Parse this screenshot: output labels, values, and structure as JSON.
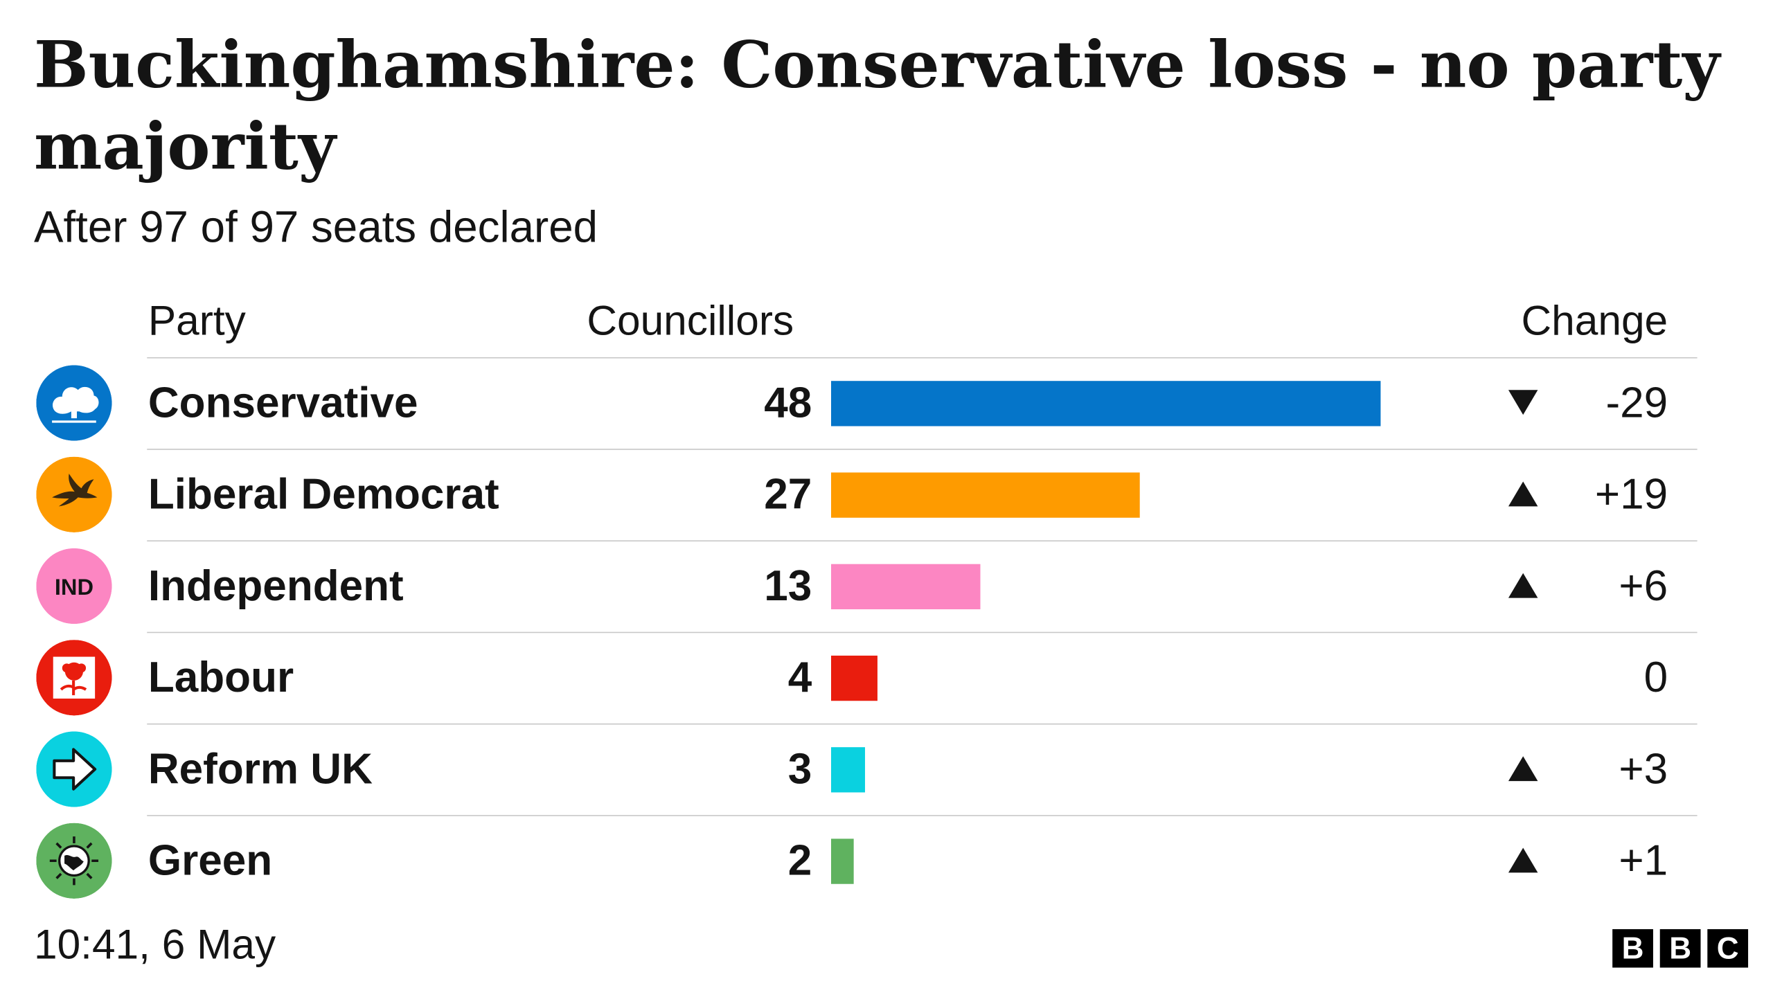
{
  "title": "Buckinghamshire: Conservative loss - no party majority",
  "subtitle": "After 97 of 97 seats declared",
  "headers": {
    "party": "Party",
    "councillors": "Councillors",
    "change": "Change"
  },
  "footer": {
    "timestamp": "10:41,  6 May",
    "brand": [
      "B",
      "B",
      "C"
    ]
  },
  "parties": [
    {
      "name": "Conservative",
      "seats": 48,
      "seats_label": "48",
      "change": "-29",
      "direction": "down",
      "color": "#0575C9",
      "icon": "conservative-tree-icon"
    },
    {
      "name": "Liberal Democrat",
      "seats": 27,
      "seats_label": "27",
      "change": "+19",
      "direction": "up",
      "color": "#FE9B00",
      "icon": "libdem-bird-icon"
    },
    {
      "name": "Independent",
      "seats": 13,
      "seats_label": "13",
      "change": "+6",
      "direction": "up",
      "color": "#FC86C2",
      "icon": "independent-ind-icon",
      "icon_text": "IND"
    },
    {
      "name": "Labour",
      "seats": 4,
      "seats_label": "4",
      "change": "0",
      "direction": "none",
      "color": "#E91D0E",
      "icon": "labour-rose-icon"
    },
    {
      "name": "Reform UK",
      "seats": 3,
      "seats_label": "3",
      "change": "+3",
      "direction": "up",
      "color": "#0AD1E0",
      "icon": "reform-arrow-icon"
    },
    {
      "name": "Green",
      "seats": 2,
      "seats_label": "2",
      "change": "+1",
      "direction": "up",
      "color": "#5FB25F",
      "icon": "green-globe-icon"
    }
  ],
  "chart_data": {
    "type": "bar",
    "orientation": "horizontal",
    "title": "Buckinghamshire: Conservative loss - no party majority",
    "subtitle": "After 97 of 97 seats declared",
    "categories": [
      "Conservative",
      "Liberal Democrat",
      "Independent",
      "Labour",
      "Reform UK",
      "Green"
    ],
    "values": [
      48,
      27,
      13,
      4,
      3,
      2
    ],
    "change": [
      -29,
      19,
      6,
      0,
      3,
      1
    ],
    "colors": [
      "#0575C9",
      "#FE9B00",
      "#FC86C2",
      "#E91D0E",
      "#0AD1E0",
      "#5FB25F"
    ],
    "xlim": [
      0,
      48
    ],
    "grid": false
  }
}
